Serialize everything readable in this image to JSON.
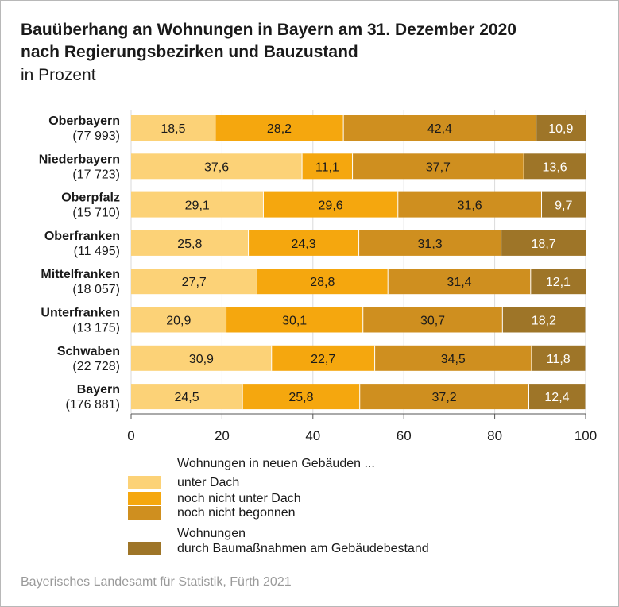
{
  "title_line1": "Bauüberhang an Wohnungen in Bayern am 31. Dezember 2020",
  "title_line2": "nach Regierungsbezirken und Bauzustand",
  "subtitle": "in Prozent",
  "source": "Bayerisches Landesamt für Statistik, Fürth 2021",
  "legend": {
    "heading": "Wohnungen in neuen Gebäuden ...",
    "item1": "unter Dach",
    "item2": "noch nicht unter Dach",
    "item3": "noch nicht begonnen",
    "item4_line1": "Wohnungen",
    "item4_line2": "durch Baumaßnahmen am Gebäudebestand"
  },
  "chart_data": {
    "type": "bar",
    "orientation": "horizontal",
    "stacked": true,
    "categories": [
      "Oberbayern",
      "Niederbayern",
      "Oberpfalz",
      "Oberfranken",
      "Mittelfranken",
      "Unterfranken",
      "Schwaben",
      "Bayern"
    ],
    "category_counts": [
      "(77 993)",
      "(17 723)",
      "(15 710)",
      "(11 495)",
      "(18 057)",
      "(13 175)",
      "(22 728)",
      "(176 881)"
    ],
    "series": [
      {
        "name": "unter Dach",
        "color": "#fcd277",
        "text_color": "#1a1a1a",
        "values": [
          18.5,
          37.6,
          29.1,
          25.8,
          27.7,
          20.9,
          30.9,
          24.5
        ],
        "labels": [
          "18,5",
          "37,6",
          "29,1",
          "25,8",
          "27,7",
          "20,9",
          "30,9",
          "24,5"
        ]
      },
      {
        "name": "noch nicht unter Dach",
        "color": "#f5a70e",
        "text_color": "#1a1a1a",
        "values": [
          28.2,
          11.1,
          29.6,
          24.3,
          28.8,
          30.1,
          22.7,
          25.8
        ],
        "labels": [
          "28,2",
          "11,1",
          "29,6",
          "24,3",
          "28,8",
          "30,1",
          "22,7",
          "25,8"
        ]
      },
      {
        "name": "noch nicht begonnen",
        "color": "#cf8f1f",
        "text_color": "#1a1a1a",
        "values": [
          42.4,
          37.7,
          31.6,
          31.3,
          31.4,
          30.7,
          34.5,
          37.2
        ],
        "labels": [
          "42,4",
          "37,7",
          "31,6",
          "31,3",
          "31,4",
          "30,7",
          "34,5",
          "37,2"
        ]
      },
      {
        "name": "durch Baumaßnahmen am Gebäudebestand",
        "color": "#9e7528",
        "text_color": "#ffffff",
        "values": [
          10.9,
          13.6,
          9.7,
          18.7,
          12.1,
          18.2,
          11.8,
          12.4
        ],
        "labels": [
          "10,9",
          "13,6",
          "9,7",
          "18,7",
          "12,1",
          "18,2",
          "11,8",
          "12,4"
        ]
      }
    ],
    "xlim": [
      0,
      100
    ],
    "xticks": [
      0,
      20,
      40,
      60,
      80,
      100
    ],
    "grid": true,
    "legend_position": "bottom"
  }
}
